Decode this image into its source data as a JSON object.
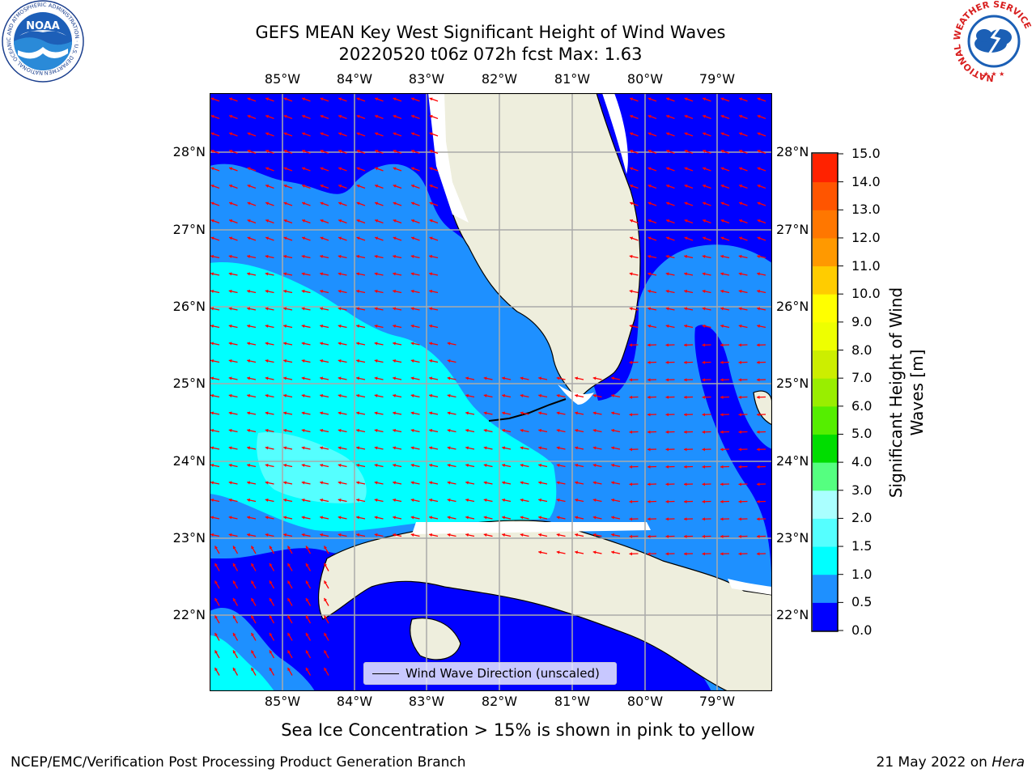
{
  "title": {
    "line1": "GEFS MEAN Key West Significant Height of Wind Waves",
    "line2": "20220520 t06z 072h fcst   Max: 1.63"
  },
  "logos": {
    "left": {
      "name": "noaa-logo",
      "text": "NOAA",
      "ring_text": "NATIONAL OCEANIC AND ATMOSPHERIC ADMINISTRATION · U.S. DEPARTMENT OF COMMERCE"
    },
    "right": {
      "name": "nws-logo",
      "ring_text": "NATIONAL WEATHER SERVICE"
    }
  },
  "map": {
    "longitude_labels": [
      "85°W",
      "84°W",
      "83°W",
      "82°W",
      "81°W",
      "80°W",
      "79°W"
    ],
    "latitude_labels": [
      "28°N",
      "27°N",
      "26°N",
      "25°N",
      "24°N",
      "23°N",
      "22°N"
    ],
    "grid": true,
    "land_color": "#eeeedd",
    "arrow_color": "#ff0000",
    "legend_label": "Wind Wave Direction (unscaled)"
  },
  "colorbar": {
    "title": "Significant Height of Wind Waves [m]",
    "tick_labels": [
      "0.0",
      "0.5",
      "1.0",
      "1.5",
      "2.0",
      "3.0",
      "4.0",
      "5.0",
      "6.0",
      "7.0",
      "8.0",
      "9.0",
      "10.0",
      "11.0",
      "12.0",
      "13.0",
      "14.0",
      "15.0"
    ],
    "colors": [
      "#0000ff",
      "#1e90ff",
      "#00ffff",
      "#55ffff",
      "#aaffff",
      "#55ff80",
      "#00dd00",
      "#55ee00",
      "#99ee00",
      "#ccee00",
      "#eeff00",
      "#ffff00",
      "#ffcc00",
      "#ff9900",
      "#ff7700",
      "#ff5500",
      "#ff2200"
    ]
  },
  "footer_note": "Sea Ice Concentration > 15% is shown in pink to yellow",
  "credit": "NCEP/EMC/Verification Post Processing Product Generation Branch",
  "date_stamp": {
    "prefix": "21 May 2022 on ",
    "host": "Hera"
  }
}
